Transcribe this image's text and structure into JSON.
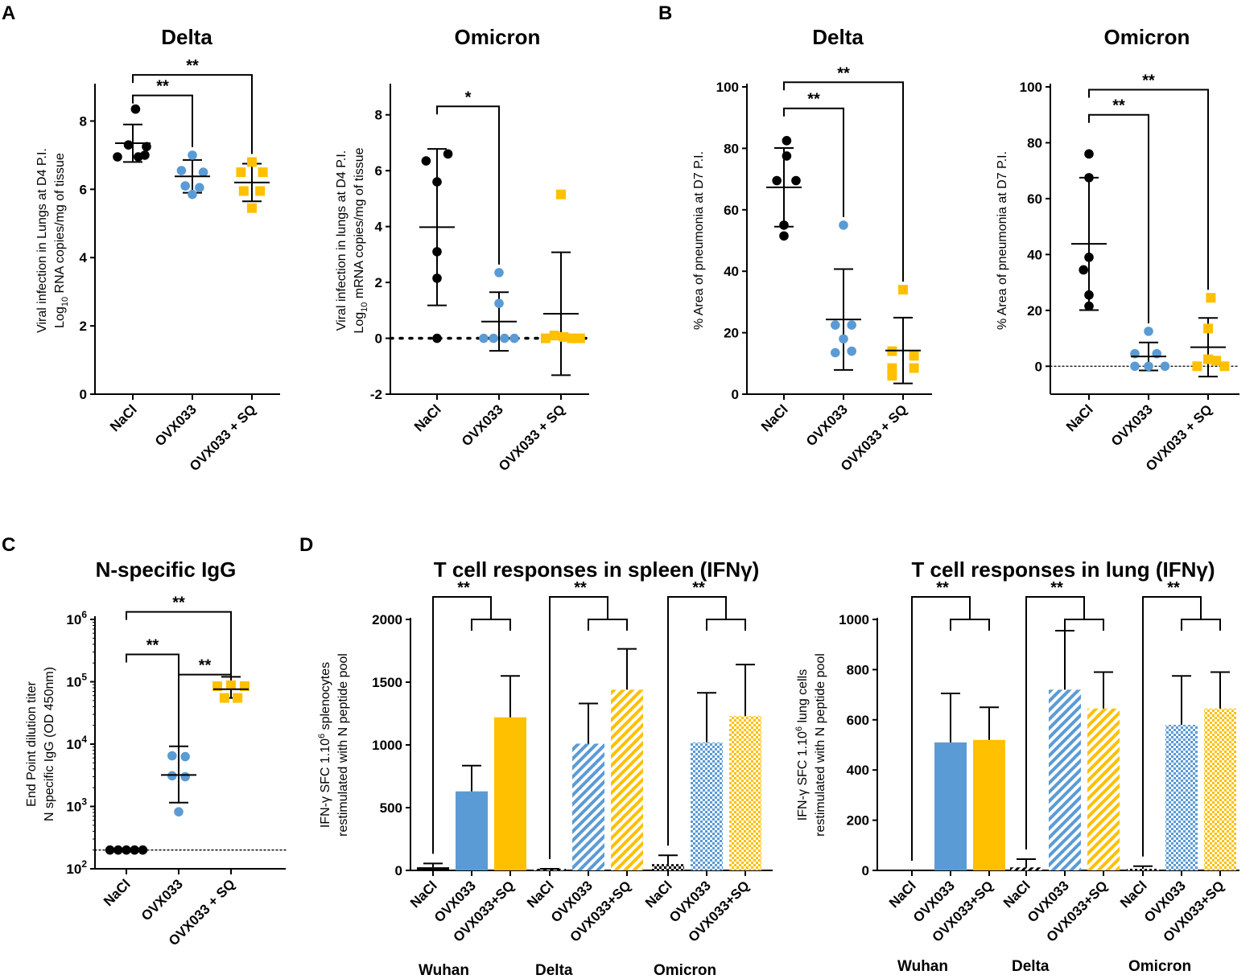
{
  "figure": {
    "panel_labels": [
      "A",
      "B",
      "C",
      "D"
    ]
  },
  "colors": {
    "NaCl": "#000000",
    "OVX033": "#5B9BD5",
    "OVX033_SQ": "#FFC000"
  },
  "chart_data": [
    {
      "id": "A-delta",
      "type": "scatter",
      "title": "Delta",
      "ylabel_lines": [
        "Viral infection in Lungs at D4 P.I.",
        "Log10 RNA copies/mg of tissue"
      ],
      "categories": [
        "NaCl",
        "OVX033",
        "OVX033 + SQ"
      ],
      "ylim": [
        0,
        9
      ],
      "yticks": [
        0,
        2,
        4,
        6,
        8
      ],
      "series": [
        {
          "name": "NaCl",
          "marker": "circle",
          "color": "#000000",
          "points": [
            [
              -0.28,
              6.95
            ],
            [
              0.05,
              8.35
            ],
            [
              -0.08,
              7.3
            ],
            [
              0.1,
              6.95
            ],
            [
              0.22,
              7.0
            ],
            [
              0.25,
              7.25
            ]
          ],
          "mean": 7.35,
          "sd": 0.55
        },
        {
          "name": "OVX033",
          "marker": "circle",
          "color": "#5B9BD5",
          "points": [
            [
              0.0,
              7.0
            ],
            [
              -0.2,
              6.55
            ],
            [
              0.2,
              6.5
            ],
            [
              -0.13,
              6.1
            ],
            [
              0.13,
              6.05
            ],
            [
              0.0,
              5.85
            ]
          ],
          "mean": 6.38,
          "sd": 0.48
        },
        {
          "name": "OVX033 + SQ",
          "marker": "square",
          "color": "#FFC000",
          "points": [
            [
              0.0,
              6.8
            ],
            [
              -0.2,
              6.5
            ],
            [
              0.2,
              6.5
            ],
            [
              -0.15,
              5.95
            ],
            [
              0.15,
              5.95
            ],
            [
              0.0,
              5.45
            ]
          ],
          "mean": 6.2,
          "sd": 0.55
        }
      ],
      "annotations": [
        {
          "from": 0,
          "to": 1,
          "label": "**",
          "y": 8.75
        },
        {
          "from": 0,
          "to": 2,
          "label": "**",
          "y": 9.35
        }
      ]
    },
    {
      "id": "A-omicron",
      "type": "scatter",
      "title": "Omicron",
      "ylabel_lines": [
        "Viral infection in lungs at D4 P.I.",
        "Log10 mRNA copies/mg of tissue"
      ],
      "categories": [
        "NaCl",
        "OVX033",
        "OVX033 + SQ"
      ],
      "ylim": [
        -2,
        9
      ],
      "yticks": [
        -2,
        0,
        2,
        4,
        6,
        8
      ],
      "baseline": 0,
      "series": [
        {
          "name": "NaCl",
          "marker": "circle",
          "color": "#000000",
          "points": [
            [
              -0.2,
              6.35
            ],
            [
              0.2,
              6.6
            ],
            [
              0.0,
              5.6
            ],
            [
              0.0,
              3.1
            ],
            [
              0.0,
              2.15
            ],
            [
              0.0,
              0.0
            ]
          ],
          "mean": 3.98,
          "sd": 2.8
        },
        {
          "name": "OVX033",
          "marker": "circle",
          "color": "#5B9BD5",
          "points": [
            [
              0.0,
              2.35
            ],
            [
              0.0,
              1.25
            ],
            [
              -0.28,
              0.0
            ],
            [
              -0.1,
              0.0
            ],
            [
              0.1,
              0.0
            ],
            [
              0.28,
              0.0
            ]
          ],
          "mean": 0.6,
          "sd": 1.05
        },
        {
          "name": "OVX033 + SQ",
          "marker": "square",
          "color": "#FFC000",
          "points": [
            [
              0.0,
              5.15
            ],
            [
              -0.28,
              0.0
            ],
            [
              -0.12,
              0.1
            ],
            [
              0.05,
              0.05
            ],
            [
              0.2,
              0.0
            ],
            [
              0.35,
              0.0
            ]
          ],
          "mean": 0.88,
          "sd": 2.2
        }
      ],
      "annotations": [
        {
          "from": 0,
          "to": 1,
          "label": "*",
          "y": 8.3
        }
      ]
    },
    {
      "id": "B-delta",
      "type": "scatter",
      "title": "Delta",
      "ylabel_lines": [
        "% Area of pneumonia at D7 P.I."
      ],
      "categories": [
        "NaCl",
        "OVX033",
        "OVX033 + SQ"
      ],
      "ylim": [
        0,
        100
      ],
      "yticks": [
        0,
        20,
        40,
        60,
        80,
        100
      ],
      "series": [
        {
          "name": "NaCl",
          "marker": "circle",
          "color": "#000000",
          "points": [
            [
              0.05,
              82.5
            ],
            [
              0.05,
              77.5
            ],
            [
              -0.13,
              69.5
            ],
            [
              0.22,
              69.5
            ],
            [
              0.0,
              55.0
            ],
            [
              0.0,
              51.5
            ]
          ],
          "mean": 67.3,
          "sd": 12.8
        },
        {
          "name": "OVX033",
          "marker": "circle",
          "color": "#5B9BD5",
          "points": [
            [
              0.0,
              55.0
            ],
            [
              -0.15,
              22.5
            ],
            [
              0.15,
              22.5
            ],
            [
              0.0,
              18.0
            ],
            [
              -0.15,
              13.5
            ],
            [
              0.15,
              14.0
            ]
          ],
          "mean": 24.3,
          "sd": 16.4
        },
        {
          "name": "OVX033 + SQ",
          "marker": "square",
          "color": "#FFC000",
          "points": [
            [
              0.0,
              34.0
            ],
            [
              -0.2,
              14.0
            ],
            [
              0.2,
              12.5
            ],
            [
              -0.2,
              8.5
            ],
            [
              0.2,
              8.5
            ],
            [
              -0.2,
              6.0
            ]
          ],
          "mean": 14.2,
          "sd": 10.7
        }
      ],
      "annotations": [
        {
          "from": 0,
          "to": 1,
          "label": "**",
          "y": 93
        },
        {
          "from": 0,
          "to": 2,
          "label": "**",
          "y": 101.5
        }
      ]
    },
    {
      "id": "B-omicron",
      "type": "scatter",
      "title": "Omicron",
      "ylabel_lines": [
        "% Area of pneumonia at D7 P.I."
      ],
      "categories": [
        "NaCl",
        "OVX033",
        "OVX033 + SQ"
      ],
      "ylim": [
        -10,
        100
      ],
      "yticks": [
        0,
        20,
        40,
        60,
        80,
        100
      ],
      "baseline": 0,
      "series": [
        {
          "name": "NaCl",
          "marker": "circle",
          "color": "#000000",
          "points": [
            [
              0.0,
              76.0
            ],
            [
              0.0,
              67.5
            ],
            [
              0.0,
              39.0
            ],
            [
              -0.1,
              34.5
            ],
            [
              0.0,
              25.5
            ],
            [
              0.0,
              21.5
            ]
          ],
          "mean": 43.8,
          "sd": 23.7
        },
        {
          "name": "OVX033",
          "marker": "circle",
          "color": "#5B9BD5",
          "points": [
            [
              0.0,
              12.5
            ],
            [
              -0.25,
              4.5
            ],
            [
              0.15,
              4.5
            ],
            [
              -0.25,
              0.0
            ],
            [
              0.0,
              0.0
            ],
            [
              0.3,
              0.0
            ]
          ],
          "mean": 3.5,
          "sd": 5.0
        },
        {
          "name": "OVX033 + SQ",
          "marker": "square",
          "color": "#FFC000",
          "points": [
            [
              0.05,
              24.5
            ],
            [
              0.0,
              13.5
            ],
            [
              -0.2,
              0.0
            ],
            [
              0.0,
              2.5
            ],
            [
              0.15,
              2.0
            ],
            [
              0.3,
              0.0
            ]
          ],
          "mean": 6.8,
          "sd": 10.5
        }
      ],
      "annotations": [
        {
          "from": 0,
          "to": 1,
          "label": "**",
          "y": 90
        },
        {
          "from": 0,
          "to": 2,
          "label": "**",
          "y": 99
        }
      ]
    },
    {
      "id": "C",
      "type": "scatter",
      "title": "N-specific IgG",
      "yscale": "log",
      "ylabel_lines": [
        "End Point dilution titer",
        "N specific IgG (OD 450nm)"
      ],
      "categories": [
        "NaCl",
        "OVX033",
        "OVX033 + SQ"
      ],
      "ylim": [
        100,
        1000000
      ],
      "ytick_exponents": [
        "2",
        "3",
        "4",
        "5",
        "6"
      ],
      "ytick_base": "10",
      "baseline": 200,
      "series": [
        {
          "name": "NaCl",
          "marker": "circle",
          "color": "#000000",
          "points": [
            [
              -0.3,
              200
            ],
            [
              -0.15,
              200
            ],
            [
              0.0,
              200
            ],
            [
              0.15,
              200
            ],
            [
              0.3,
              200
            ]
          ],
          "mean": 200,
          "sd_low": 200,
          "sd_high": 200
        },
        {
          "name": "OVX033",
          "marker": "circle",
          "color": "#5B9BD5",
          "points": [
            [
              -0.12,
              6500
            ],
            [
              0.12,
              6300
            ],
            [
              -0.12,
              3100
            ],
            [
              0.12,
              3000
            ],
            [
              0.0,
              820
            ]
          ],
          "mean": 3200,
          "sd_low": 1150,
          "sd_high": 9200
        },
        {
          "name": "OVX033 + SQ",
          "marker": "square",
          "color": "#FFC000",
          "points": [
            [
              -0.25,
              85000
            ],
            [
              0.0,
              88000
            ],
            [
              0.25,
              85000
            ],
            [
              -0.12,
              55000
            ],
            [
              0.12,
              55000
            ]
          ],
          "mean": 76000,
          "sd_low": 55000,
          "sd_high": 120000
        }
      ],
      "annotations": [
        {
          "from": 0,
          "to": 1,
          "label": "**",
          "y": 275000
        },
        {
          "from": 0,
          "to": 2,
          "label": "**",
          "y": 1320000
        },
        {
          "from": 1,
          "to": 2,
          "label": "**",
          "y": 130000
        }
      ]
    },
    {
      "id": "D-spleen",
      "type": "bar",
      "title": "T cell responses in spleen (IFNγ)",
      "ylabel_lines": [
        "IFN-γ SFC 1.10^6 splenocytes",
        "restimulated with N peptide pool"
      ],
      "ylim": [
        0,
        2000
      ],
      "yticks": [
        0,
        500,
        1000,
        1500,
        2000
      ],
      "group_labels": [
        "Wuhan",
        "Delta",
        "Omicron"
      ],
      "bar_labels": [
        "NaCl",
        "OVX033",
        "OVX033+SQ"
      ],
      "groups": [
        {
          "name": "Wuhan",
          "pattern": "solid",
          "values": [
            25,
            630,
            1220
          ],
          "errors": [
            30,
            205,
            330
          ]
        },
        {
          "name": "Delta",
          "pattern": "stripe",
          "values": [
            8,
            1010,
            1440
          ],
          "errors": [
            5,
            320,
            325
          ]
        },
        {
          "name": "Omicron",
          "pattern": "check",
          "values": [
            50,
            1020,
            1230
          ],
          "errors": [
            70,
            395,
            410
          ]
        }
      ],
      "sig_label": "**"
    },
    {
      "id": "D-lung",
      "type": "bar",
      "title": "T cell responses in lung (IFNγ)",
      "ylabel_lines": [
        "IFN-γ SFC 1.10^6 lung cells",
        "restimulated with N peptide pool"
      ],
      "ylim": [
        0,
        1000
      ],
      "yticks": [
        0,
        200,
        400,
        600,
        800,
        1000
      ],
      "group_labels": [
        "Wuhan",
        "Delta",
        "Omicron"
      ],
      "bar_labels": [
        "NaCl",
        "OVX033",
        "OVX033+SQ"
      ],
      "groups": [
        {
          "name": "Wuhan",
          "pattern": "solid",
          "values": [
            0,
            510,
            520
          ],
          "errors": [
            0,
            195,
            130
          ]
        },
        {
          "name": "Delta",
          "pattern": "stripe",
          "values": [
            12,
            720,
            645
          ],
          "errors": [
            33,
            235,
            145
          ]
        },
        {
          "name": "Omicron",
          "pattern": "check",
          "values": [
            5,
            580,
            645
          ],
          "errors": [
            12,
            195,
            145
          ]
        }
      ],
      "sig_label": "**"
    }
  ]
}
